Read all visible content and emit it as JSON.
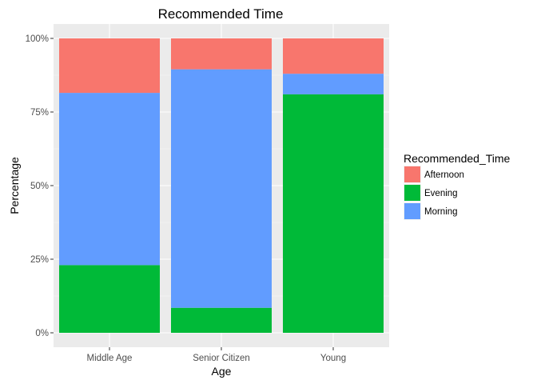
{
  "chart_data": {
    "type": "bar",
    "stacked": true,
    "title": "Recommended Time",
    "xlabel": "Age",
    "ylabel": "Percentage",
    "categories": [
      "Middle Age",
      "Senior Citizen",
      "Young"
    ],
    "ylim": [
      0,
      1
    ],
    "yticks": [
      0,
      0.25,
      0.5,
      0.75,
      1
    ],
    "ytick_labels": [
      "0%",
      "25%",
      "50%",
      "75%",
      "100%"
    ],
    "grid": true,
    "legend": {
      "title": "Recommended_Time",
      "position": "right"
    },
    "series": [
      {
        "name": "Evening",
        "color": "#00ba38",
        "values": [
          0.23,
          0.085,
          0.81
        ]
      },
      {
        "name": "Morning",
        "color": "#619cff",
        "values": [
          0.585,
          0.81,
          0.07
        ]
      },
      {
        "name": "Afternoon",
        "color": "#f8766d",
        "values": [
          0.185,
          0.105,
          0.12
        ]
      }
    ],
    "legend_order": [
      "Afternoon",
      "Evening",
      "Morning"
    ]
  }
}
